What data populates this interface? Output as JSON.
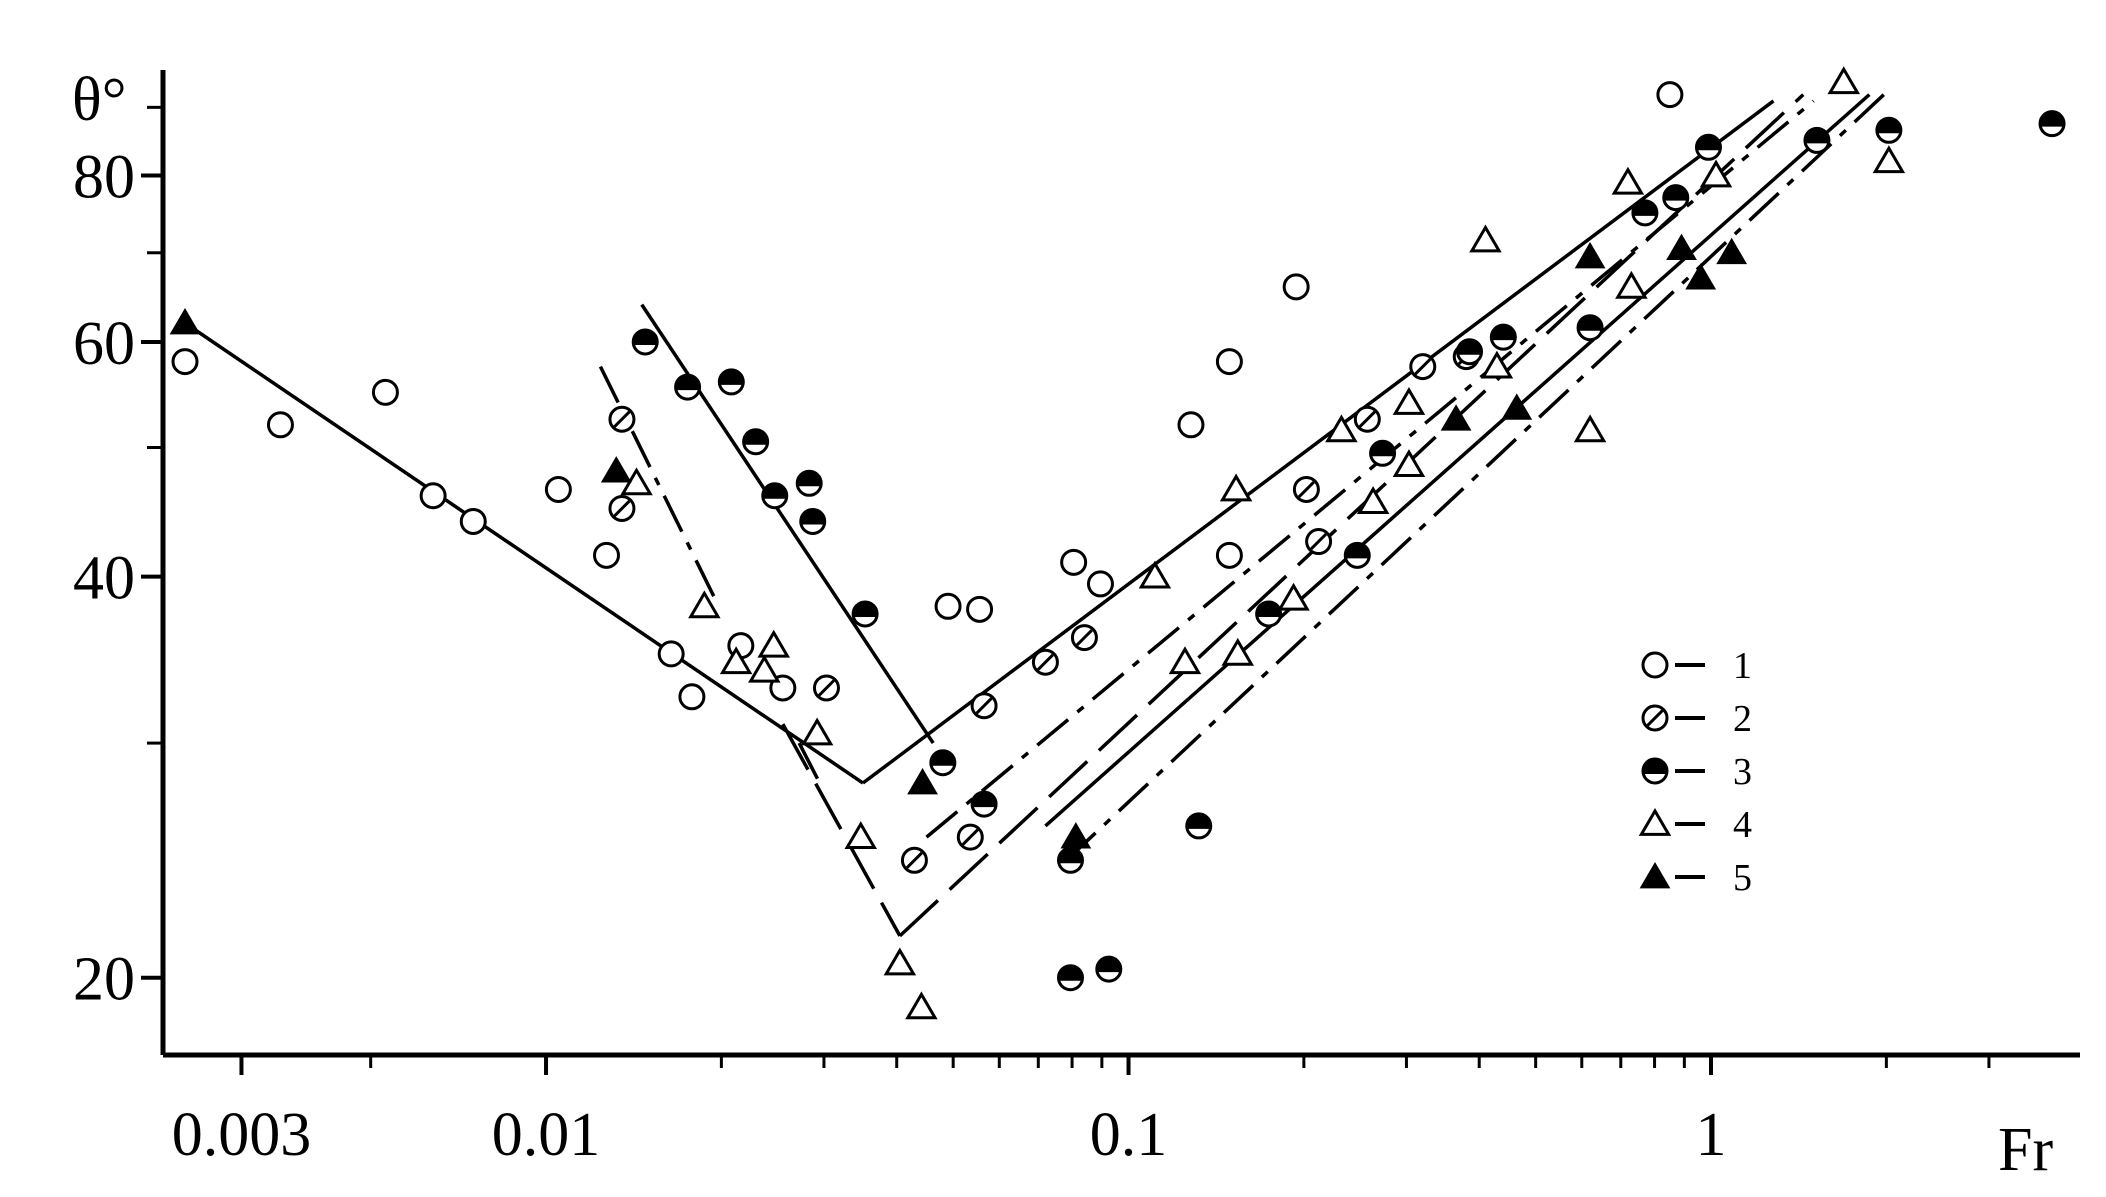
{
  "chart_data": {
    "type": "scatter",
    "ylabel": "θ°",
    "xlabel": "Fr",
    "x_scale": "log",
    "y_scale": "log",
    "xlim": [
      0.0022,
      4.3
    ],
    "ylim": [
      17.5,
      96
    ],
    "x_ticks": [
      {
        "value": 0.003,
        "label": "0.003"
      },
      {
        "value": 0.01,
        "label": "0.01"
      },
      {
        "value": 0.1,
        "label": "0.1"
      },
      {
        "value": 1,
        "label": "1"
      }
    ],
    "x_minor_ticks": [
      0.005,
      0.02,
      0.03,
      0.04,
      0.05,
      0.06,
      0.07,
      0.08,
      0.09,
      0.2,
      0.3,
      0.4,
      0.5,
      0.6,
      0.7,
      0.8,
      0.9,
      2,
      3
    ],
    "y_ticks": [
      {
        "value": 20,
        "label": "20"
      },
      {
        "value": 40,
        "label": "40"
      },
      {
        "value": 60,
        "label": "60"
      },
      {
        "value": 80,
        "label": "80"
      }
    ],
    "y_minor_ticks": [
      30,
      50,
      70,
      90
    ],
    "legend_position": "right",
    "series": [
      {
        "name": "1",
        "marker": "open-circle",
        "points": [
          [
            0.0024,
            58
          ],
          [
            0.0035,
            52
          ],
          [
            0.0053,
            55
          ],
          [
            0.0064,
            46
          ],
          [
            0.0075,
            44
          ],
          [
            0.0105,
            46.5
          ],
          [
            0.0127,
            41.5
          ],
          [
            0.0164,
            35
          ],
          [
            0.0178,
            32.5
          ],
          [
            0.0216,
            35.5
          ],
          [
            0.0255,
            33
          ],
          [
            0.049,
            38
          ],
          [
            0.0555,
            37.8
          ],
          [
            0.0805,
            41
          ],
          [
            0.0895,
            39.5
          ],
          [
            0.128,
            52
          ],
          [
            0.149,
            58
          ],
          [
            0.149,
            41.5
          ],
          [
            0.194,
            66
          ],
          [
            0.85,
            92
          ]
        ]
      },
      {
        "name": "2",
        "marker": "hatched-circle",
        "points": [
          [
            0.0135,
            52.5
          ],
          [
            0.0135,
            45
          ],
          [
            0.0303,
            33
          ],
          [
            0.0429,
            24.5
          ],
          [
            0.0535,
            25.5
          ],
          [
            0.0565,
            32
          ],
          [
            0.072,
            34.5
          ],
          [
            0.084,
            36
          ],
          [
            0.202,
            46.5
          ],
          [
            0.212,
            42.5
          ],
          [
            0.257,
            52.5
          ],
          [
            0.32,
            57.5
          ],
          [
            0.38,
            58.5
          ]
        ]
      },
      {
        "name": "3",
        "marker": "half-filled-circle",
        "points": [
          [
            0.0148,
            60
          ],
          [
            0.0175,
            55.5
          ],
          [
            0.0208,
            56
          ],
          [
            0.0229,
            50.5
          ],
          [
            0.0247,
            46
          ],
          [
            0.0283,
            47
          ],
          [
            0.0287,
            44
          ],
          [
            0.0353,
            37.5
          ],
          [
            0.048,
            29
          ],
          [
            0.0565,
            27
          ],
          [
            0.0795,
            24.5
          ],
          [
            0.0795,
            20
          ],
          [
            0.0925,
            20.3
          ],
          [
            0.132,
            26
          ],
          [
            0.174,
            37.5
          ],
          [
            0.247,
            41.5
          ],
          [
            0.273,
            49.5
          ],
          [
            0.385,
            59
          ],
          [
            0.44,
            60.5
          ],
          [
            0.62,
            61.5
          ],
          [
            0.77,
            75
          ],
          [
            0.87,
            77
          ],
          [
            0.99,
            84
          ],
          [
            1.52,
            85
          ],
          [
            2.02,
            86.5
          ],
          [
            3.85,
            87.5
          ]
        ]
      },
      {
        "name": "4",
        "marker": "open-triangle",
        "points": [
          [
            0.0143,
            47
          ],
          [
            0.0187,
            38
          ],
          [
            0.0212,
            34.5
          ],
          [
            0.0237,
            34
          ],
          [
            0.0246,
            35.5
          ],
          [
            0.0292,
            30.5
          ],
          [
            0.0347,
            25.5
          ],
          [
            0.0405,
            20.5
          ],
          [
            0.0441,
            19
          ],
          [
            0.111,
            40
          ],
          [
            0.125,
            34.5
          ],
          [
            0.153,
            46.5
          ],
          [
            0.154,
            35
          ],
          [
            0.192,
            38.5
          ],
          [
            0.232,
            51.5
          ],
          [
            0.263,
            45.5
          ],
          [
            0.303,
            54
          ],
          [
            0.303,
            48.5
          ],
          [
            0.41,
            71.5
          ],
          [
            0.429,
            57.5
          ],
          [
            0.62,
            51.5
          ],
          [
            0.72,
            79
          ],
          [
            0.73,
            66
          ],
          [
            1.02,
            80
          ],
          [
            1.69,
            94
          ],
          [
            2.02,
            82
          ]
        ]
      },
      {
        "name": "5",
        "marker": "filled-triangle",
        "points": [
          [
            0.0024,
            62
          ],
          [
            0.0132,
            48
          ],
          [
            0.0443,
            28
          ],
          [
            0.0812,
            25.5
          ],
          [
            0.365,
            52.5
          ],
          [
            0.464,
            53.5
          ],
          [
            0.62,
            69.5
          ],
          [
            0.89,
            70.5
          ],
          [
            0.96,
            67
          ],
          [
            1.085,
            70
          ]
        ]
      }
    ],
    "fit_lines": [
      {
        "series": "1",
        "style": "solid",
        "segments": [
          [
            [
              0.0024,
              62
            ],
            [
              0.035,
              28
            ]
          ],
          [
            [
              0.035,
              28
            ],
            [
              1.28,
              91
            ]
          ]
        ]
      },
      {
        "series": "2",
        "style": "dash-dot",
        "segments": [
          [
            [
              0.0124,
              57.5
            ],
            [
              0.0195,
              38.5
            ]
          ],
          [
            [
              0.045,
              25.5
            ],
            [
              1.5,
              91
            ]
          ]
        ]
      },
      {
        "series": "3",
        "style": "solid",
        "segments": [
          [
            [
              0.0146,
              64
            ],
            [
              0.0462,
              30
            ]
          ],
          [
            [
              0.072,
              26
            ],
            [
              1.87,
              92
            ]
          ]
        ]
      },
      {
        "series": "4",
        "style": "long-dash",
        "segments": [
          [
            [
              0.0255,
              31
            ],
            [
              0.0405,
              21.5
            ]
          ],
          [
            [
              0.0405,
              21.5
            ],
            [
              1.44,
              92
            ]
          ]
        ]
      },
      {
        "series": "5",
        "style": "dash-dot",
        "segments": [
          [
            [
              0.0272,
              30
            ],
            [
              0.0295,
              28
            ]
          ],
          [
            [
              0.0782,
              24.5
            ],
            [
              1.98,
              92
            ]
          ]
        ]
      }
    ]
  }
}
